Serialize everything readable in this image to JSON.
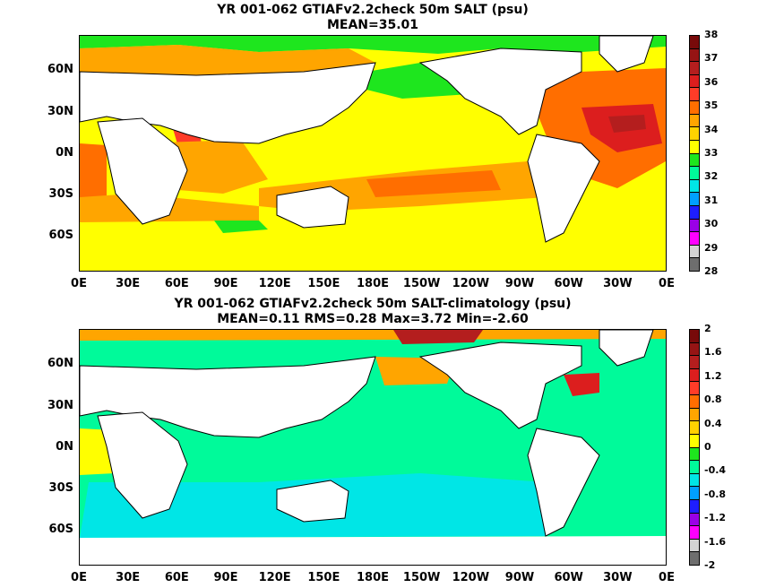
{
  "panels": [
    {
      "id": "salinity",
      "title": "YR 001-062 GTIAFv2.2check 50m SALT (psu)",
      "stats": "MEAN=35.01",
      "colorbar": {
        "labels": [
          "28",
          "29",
          "30",
          "31",
          "32",
          "33",
          "34",
          "35",
          "36",
          "37",
          "38"
        ],
        "colors": [
          "#6e6e6e",
          "#d4d4d4",
          "#ff00ff",
          "#9a00e6",
          "#1e1eff",
          "#00a0ff",
          "#00e6e6",
          "#00fa9a",
          "#1ee61e",
          "#ffff00",
          "#ffd200",
          "#ffa500",
          "#ff6e00",
          "#ff3c28",
          "#dc1e1e",
          "#b41e1e",
          "#961414",
          "#780a0a"
        ]
      },
      "background_color": "#ffff00"
    },
    {
      "id": "anomaly",
      "title": "YR 001-062 GTIAFv2.2check 50m SALT-climatology (psu)",
      "stats": "MEAN=0.11   RMS=0.28   Max=3.72   Min=-2.60",
      "colorbar": {
        "labels": [
          "-2",
          "-1.6",
          "-1.2",
          "-0.8",
          "-0.4",
          "0",
          "0.4",
          "0.8",
          "1.2",
          "1.6",
          "2"
        ],
        "colors": [
          "#6e6e6e",
          "#d4d4d4",
          "#ff00ff",
          "#9a00e6",
          "#1e1eff",
          "#00a0ff",
          "#00e6e6",
          "#00fa9a",
          "#1ee61e",
          "#ffff00",
          "#ffd200",
          "#ffa500",
          "#ff6e00",
          "#ff3c28",
          "#dc1e1e",
          "#b41e1e",
          "#961414",
          "#780a0a"
        ]
      },
      "background_color": "#00fa9a"
    }
  ],
  "axes": {
    "lat_labels": [
      "60N",
      "30N",
      "0N",
      "30S",
      "60S"
    ],
    "lon_labels": [
      "0E",
      "30E",
      "60E",
      "90E",
      "120E",
      "150E",
      "180E",
      "150W",
      "120W",
      "90W",
      "60W",
      "30W",
      "0E"
    ]
  }
}
